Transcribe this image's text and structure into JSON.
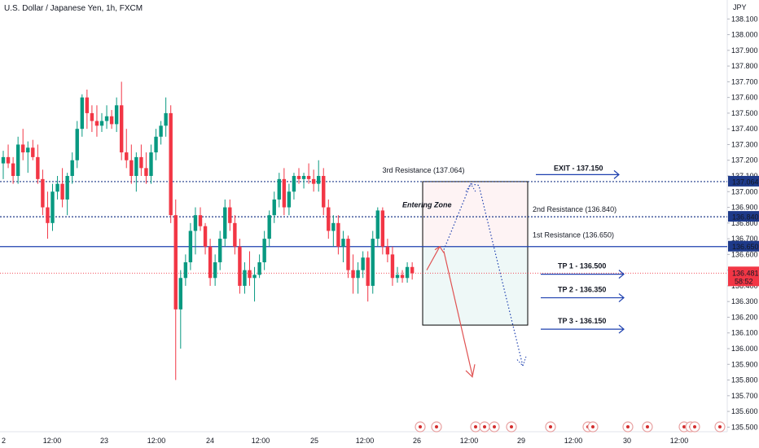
{
  "header": {
    "title": "U.S. Dollar / Japanese Yen, 1h, FXCM",
    "currency": "JPY"
  },
  "chart_data": {
    "type": "candlestick",
    "ylim": [
      135.45,
      138.2
    ],
    "y_ticks": [
      "135.500",
      "135.600",
      "135.700",
      "135.800",
      "135.900",
      "136.000",
      "136.100",
      "136.200",
      "136.300",
      "136.400",
      "136.500",
      "136.600",
      "136.700",
      "136.800",
      "136.900",
      "137.000",
      "137.100",
      "137.200",
      "137.300",
      "137.400",
      "137.500",
      "137.600",
      "137.700",
      "137.800",
      "137.900",
      "138.000",
      "138.100"
    ],
    "x_ticks": [
      "2",
      "12:00",
      "23",
      "12:00",
      "24",
      "12:00",
      "25",
      "12:00",
      "26",
      "12:00",
      "29",
      "12:00",
      "30",
      "12:00"
    ],
    "current_price": {
      "label": "136.481",
      "timer": "58:52",
      "value": 136.481,
      "color": "#f23645"
    },
    "levels": [
      {
        "name": "exit",
        "value": 137.064,
        "label": "137.064",
        "style": "dotted",
        "color": "#1e3a8a"
      },
      {
        "name": "second-resistance",
        "value": 136.84,
        "label": "136.840",
        "style": "dotted",
        "color": "#1e3a8a"
      },
      {
        "name": "first-resistance",
        "value": 136.65,
        "label": "136.650",
        "style": "solid",
        "color": "#1e40af"
      }
    ],
    "annotations": {
      "third_resistance": "3rd Resistance (137.064)",
      "second_resistance": "2nd Resistance (136.840)",
      "first_resistance": "1st Resistance (136.650)",
      "entering_zone": "Entering Zone",
      "exit": "EXIT - 137.150",
      "tp1": "TP 1 - 136.500",
      "tp2": "TP 2 - 136.350",
      "tp3": "TP 3 - 136.150"
    },
    "colors": {
      "up": "#089981",
      "down": "#f23645",
      "annotation": "#e05252",
      "entry": "#0f8a6a",
      "tp": "#1e40af"
    },
    "candles": [
      [
        137.18,
        137.26,
        137.08,
        137.22
      ],
      [
        137.22,
        137.3,
        137.15,
        137.18
      ],
      [
        137.18,
        137.22,
        137.05,
        137.1
      ],
      [
        137.1,
        137.35,
        137.05,
        137.3
      ],
      [
        137.3,
        137.4,
        137.2,
        137.25
      ],
      [
        137.25,
        137.32,
        137.12,
        137.28
      ],
      [
        137.28,
        137.33,
        137.2,
        137.22
      ],
      [
        137.22,
        137.3,
        137.05,
        137.08
      ],
      [
        137.08,
        137.14,
        136.85,
        136.9
      ],
      [
        136.9,
        137.0,
        136.7,
        136.8
      ],
      [
        136.8,
        137.05,
        136.75,
        137.0
      ],
      [
        137.0,
        137.1,
        136.95,
        137.05
      ],
      [
        137.05,
        137.15,
        136.9,
        136.95
      ],
      [
        136.95,
        137.12,
        136.85,
        137.1
      ],
      [
        137.1,
        137.25,
        137.05,
        137.2
      ],
      [
        137.2,
        137.45,
        137.15,
        137.4
      ],
      [
        137.4,
        137.62,
        137.35,
        137.6
      ],
      [
        137.6,
        137.65,
        137.4,
        137.5
      ],
      [
        137.5,
        137.55,
        137.38,
        137.45
      ],
      [
        137.45,
        137.55,
        137.35,
        137.42
      ],
      [
        137.42,
        137.5,
        137.38,
        137.45
      ],
      [
        137.45,
        137.55,
        137.4,
        137.48
      ],
      [
        137.48,
        137.52,
        137.4,
        137.43
      ],
      [
        137.43,
        137.6,
        137.38,
        137.55
      ],
      [
        137.55,
        137.7,
        137.2,
        137.25
      ],
      [
        137.25,
        137.4,
        137.15,
        137.2
      ],
      [
        137.2,
        137.3,
        137.05,
        137.1
      ],
      [
        137.1,
        137.25,
        137.0,
        137.22
      ],
      [
        137.22,
        137.3,
        137.1,
        137.15
      ],
      [
        137.15,
        137.25,
        137.05,
        137.1
      ],
      [
        137.1,
        137.3,
        137.05,
        137.25
      ],
      [
        137.25,
        137.4,
        137.2,
        137.35
      ],
      [
        137.35,
        137.45,
        137.3,
        137.42
      ],
      [
        137.42,
        137.6,
        137.35,
        137.5
      ],
      [
        137.5,
        137.55,
        136.8,
        136.85
      ],
      [
        136.85,
        136.95,
        135.8,
        136.25
      ],
      [
        136.25,
        136.5,
        136.0,
        136.45
      ],
      [
        136.45,
        136.6,
        136.4,
        136.55
      ],
      [
        136.55,
        136.8,
        136.5,
        136.75
      ],
      [
        136.75,
        136.9,
        136.6,
        136.85
      ],
      [
        136.85,
        136.9,
        136.75,
        136.78
      ],
      [
        136.78,
        136.8,
        136.6,
        136.65
      ],
      [
        136.65,
        136.7,
        136.4,
        136.45
      ],
      [
        136.45,
        136.6,
        136.4,
        136.55
      ],
      [
        136.55,
        136.75,
        136.5,
        136.7
      ],
      [
        136.7,
        136.95,
        136.65,
        136.9
      ],
      [
        136.9,
        136.95,
        136.75,
        136.8
      ],
      [
        136.8,
        136.85,
        136.6,
        136.65
      ],
      [
        136.65,
        136.7,
        136.35,
        136.4
      ],
      [
        136.4,
        136.55,
        136.35,
        136.5
      ],
      [
        136.5,
        136.62,
        136.4,
        136.45
      ],
      [
        136.45,
        136.52,
        136.3,
        136.47
      ],
      [
        136.47,
        136.6,
        136.45,
        136.55
      ],
      [
        136.55,
        136.75,
        136.5,
        136.7
      ],
      [
        136.7,
        136.88,
        136.65,
        136.85
      ],
      [
        136.85,
        137.0,
        136.8,
        136.95
      ],
      [
        136.95,
        137.12,
        136.9,
        137.08
      ],
      [
        137.08,
        137.15,
        136.85,
        136.9
      ],
      [
        136.9,
        137.05,
        136.85,
        137.0
      ],
      [
        137.0,
        137.12,
        136.95,
        137.1
      ],
      [
        137.1,
        137.15,
        137.05,
        137.08
      ],
      [
        137.08,
        137.12,
        137.02,
        137.1
      ],
      [
        137.1,
        137.18,
        137.05,
        137.08
      ],
      [
        137.08,
        137.14,
        137.0,
        137.05
      ],
      [
        137.05,
        137.2,
        137.0,
        137.1
      ],
      [
        137.1,
        137.15,
        136.85,
        136.9
      ],
      [
        136.9,
        136.95,
        136.7,
        136.75
      ],
      [
        136.75,
        136.85,
        136.65,
        136.8
      ],
      [
        136.8,
        136.85,
        136.6,
        136.65
      ],
      [
        136.65,
        136.75,
        136.55,
        136.7
      ],
      [
        136.7,
        136.72,
        136.45,
        136.5
      ],
      [
        136.5,
        136.6,
        136.35,
        136.45
      ],
      [
        136.45,
        136.55,
        136.35,
        136.5
      ],
      [
        136.5,
        136.62,
        136.45,
        136.58
      ],
      [
        136.58,
        136.62,
        136.3,
        136.4
      ],
      [
        136.4,
        136.75,
        136.35,
        136.7
      ],
      [
        136.7,
        136.9,
        136.65,
        136.88
      ],
      [
        136.88,
        136.9,
        136.6,
        136.65
      ],
      [
        136.65,
        136.7,
        136.55,
        136.6
      ],
      [
        136.6,
        136.65,
        136.4,
        136.45
      ],
      [
        136.45,
        136.52,
        136.42,
        136.47
      ],
      [
        136.47,
        136.5,
        136.42,
        136.45
      ],
      [
        136.45,
        136.55,
        136.42,
        136.52
      ],
      [
        136.52,
        136.55,
        136.44,
        136.48
      ]
    ]
  }
}
